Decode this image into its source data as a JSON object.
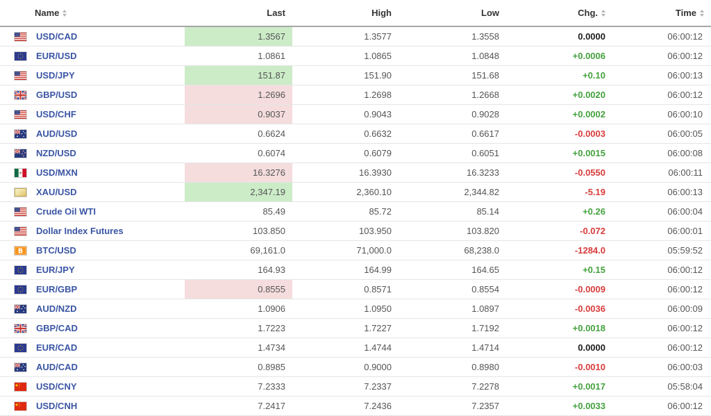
{
  "table": {
    "columns": [
      {
        "label": "Name",
        "sortable": true
      },
      {
        "label": "Last",
        "sortable": false
      },
      {
        "label": "High",
        "sortable": false
      },
      {
        "label": "Low",
        "sortable": false
      },
      {
        "label": "Chg.",
        "sortable": true
      },
      {
        "label": "Time",
        "sortable": true
      }
    ],
    "rows": [
      {
        "flag_icon": "us-flag-icon",
        "flag": "us",
        "name": "USD/CAD",
        "last": "1.3567",
        "last_bg": "green",
        "high": "1.3577",
        "low": "1.3558",
        "chg": "0.0000",
        "chg_dir": "neutral",
        "time": "06:00:12"
      },
      {
        "flag_icon": "eu-flag-icon",
        "flag": "eu",
        "name": "EUR/USD",
        "last": "1.0861",
        "last_bg": "",
        "high": "1.0865",
        "low": "1.0848",
        "chg": "+0.0006",
        "chg_dir": "up",
        "time": "06:00:12"
      },
      {
        "flag_icon": "us-flag-icon",
        "flag": "us",
        "name": "USD/JPY",
        "last": "151.87",
        "last_bg": "green",
        "high": "151.90",
        "low": "151.68",
        "chg": "+0.10",
        "chg_dir": "up",
        "time": "06:00:13"
      },
      {
        "flag_icon": "uk-flag-icon",
        "flag": "gb",
        "name": "GBP/USD",
        "last": "1.2696",
        "last_bg": "red",
        "high": "1.2698",
        "low": "1.2668",
        "chg": "+0.0020",
        "chg_dir": "up",
        "time": "06:00:12"
      },
      {
        "flag_icon": "us-flag-icon",
        "flag": "us",
        "name": "USD/CHF",
        "last": "0.9037",
        "last_bg": "red",
        "high": "0.9043",
        "low": "0.9028",
        "chg": "+0.0002",
        "chg_dir": "up",
        "time": "06:00:10"
      },
      {
        "flag_icon": "australia-flag-icon",
        "flag": "au",
        "name": "AUD/USD",
        "last": "0.6624",
        "last_bg": "",
        "high": "0.6632",
        "low": "0.6617",
        "chg": "-0.0003",
        "chg_dir": "down",
        "time": "06:00:05"
      },
      {
        "flag_icon": "new-zealand-flag-icon",
        "flag": "nz",
        "name": "NZD/USD",
        "last": "0.6074",
        "last_bg": "",
        "high": "0.6079",
        "low": "0.6051",
        "chg": "+0.0015",
        "chg_dir": "up",
        "time": "06:00:08"
      },
      {
        "flag_icon": "mexico-flag-icon",
        "flag": "mx",
        "name": "USD/MXN",
        "last": "16.3276",
        "last_bg": "red",
        "high": "16.3930",
        "low": "16.3233",
        "chg": "-0.0550",
        "chg_dir": "down",
        "time": "06:00:11"
      },
      {
        "flag_icon": "gold-bar-icon",
        "flag": "gold",
        "name": "XAU/USD",
        "last": "2,347.19",
        "last_bg": "green",
        "high": "2,360.10",
        "low": "2,344.82",
        "chg": "-5.19",
        "chg_dir": "down",
        "time": "06:00:13"
      },
      {
        "flag_icon": "us-flag-icon",
        "flag": "us",
        "name": "Crude Oil WTI",
        "last": "85.49",
        "last_bg": "",
        "high": "85.72",
        "low": "85.14",
        "chg": "+0.26",
        "chg_dir": "up",
        "time": "06:00:04"
      },
      {
        "flag_icon": "us-flag-icon",
        "flag": "us",
        "name": "Dollar Index Futures",
        "last": "103.850",
        "last_bg": "",
        "high": "103.950",
        "low": "103.820",
        "chg": "-0.072",
        "chg_dir": "down",
        "time": "06:00:01"
      },
      {
        "flag_icon": "bitcoin-icon",
        "flag": "btc",
        "name": "BTC/USD",
        "last": "69,161.0",
        "last_bg": "",
        "high": "71,000.0",
        "low": "68,238.0",
        "chg": "-1284.0",
        "chg_dir": "down",
        "time": "05:59:52"
      },
      {
        "flag_icon": "eu-flag-icon",
        "flag": "eu",
        "name": "EUR/JPY",
        "last": "164.93",
        "last_bg": "",
        "high": "164.99",
        "low": "164.65",
        "chg": "+0.15",
        "chg_dir": "up",
        "time": "06:00:12"
      },
      {
        "flag_icon": "eu-flag-icon",
        "flag": "eu",
        "name": "EUR/GBP",
        "last": "0.8555",
        "last_bg": "red",
        "high": "0.8571",
        "low": "0.8554",
        "chg": "-0.0009",
        "chg_dir": "down",
        "time": "06:00:12"
      },
      {
        "flag_icon": "australia-flag-icon",
        "flag": "au",
        "name": "AUD/NZD",
        "last": "1.0906",
        "last_bg": "",
        "high": "1.0950",
        "low": "1.0897",
        "chg": "-0.0036",
        "chg_dir": "down",
        "time": "06:00:09"
      },
      {
        "flag_icon": "uk-flag-icon",
        "flag": "gb",
        "name": "GBP/CAD",
        "last": "1.7223",
        "last_bg": "",
        "high": "1.7227",
        "low": "1.7192",
        "chg": "+0.0018",
        "chg_dir": "up",
        "time": "06:00:12"
      },
      {
        "flag_icon": "eu-flag-icon",
        "flag": "eu",
        "name": "EUR/CAD",
        "last": "1.4734",
        "last_bg": "",
        "high": "1.4744",
        "low": "1.4714",
        "chg": "0.0000",
        "chg_dir": "neutral",
        "time": "06:00:12"
      },
      {
        "flag_icon": "australia-flag-icon",
        "flag": "au",
        "name": "AUD/CAD",
        "last": "0.8985",
        "last_bg": "",
        "high": "0.9000",
        "low": "0.8980",
        "chg": "-0.0010",
        "chg_dir": "down",
        "time": "06:00:03"
      },
      {
        "flag_icon": "china-flag-icon",
        "flag": "cn",
        "name": "USD/CNY",
        "last": "7.2333",
        "last_bg": "",
        "high": "7.2337",
        "low": "7.2278",
        "chg": "+0.0017",
        "chg_dir": "up",
        "time": "05:58:04"
      },
      {
        "flag_icon": "china-flag-icon",
        "flag": "cn",
        "name": "USD/CNH",
        "last": "7.2417",
        "last_bg": "",
        "high": "7.2436",
        "low": "7.2357",
        "chg": "+0.0033",
        "chg_dir": "up",
        "time": "06:00:12"
      }
    ]
  },
  "colors": {
    "link_blue": "#3a55a4",
    "positive_green": "#43a13d",
    "negative_red": "#d93b3b",
    "neutral_black": "#1c1c1c",
    "tick_up_bg": "#ccecc8",
    "tick_down_bg": "#f5dddd"
  }
}
